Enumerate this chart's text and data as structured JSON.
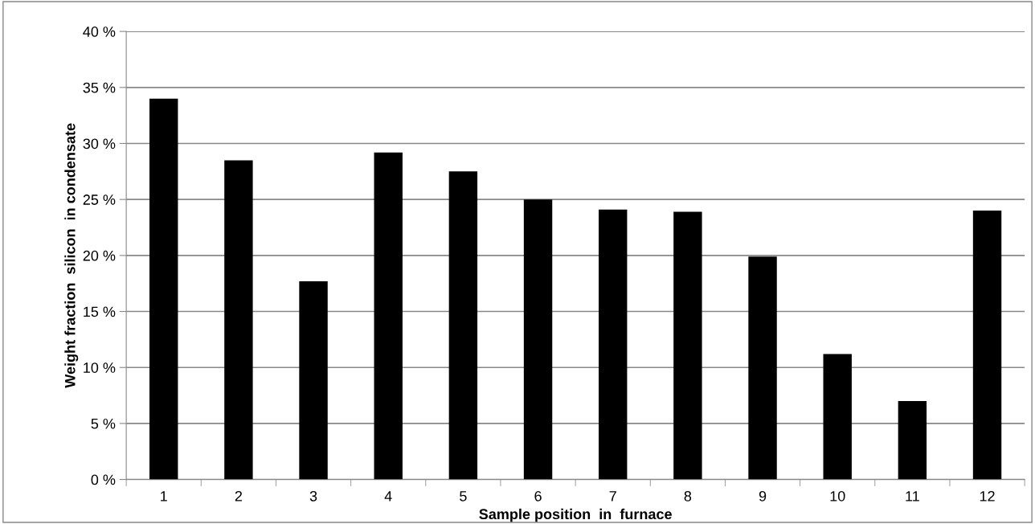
{
  "chart_data": {
    "type": "bar",
    "categories": [
      "1",
      "2",
      "3",
      "4",
      "5",
      "6",
      "7",
      "8",
      "9",
      "10",
      "11",
      "12"
    ],
    "values": [
      34.0,
      28.5,
      17.7,
      29.2,
      27.5,
      25.0,
      24.1,
      23.9,
      19.9,
      11.2,
      7.0,
      24.0
    ],
    "color": "#000000",
    "xlabel": "Sample position  in  furnace",
    "ylabel": "Weight fraction  silicon  in condensate",
    "ylim": [
      0,
      40
    ],
    "yticks": [
      {
        "value": 0,
        "label": "0 %"
      },
      {
        "value": 5,
        "label": "5 %"
      },
      {
        "value": 10,
        "label": "10 %"
      },
      {
        "value": 15,
        "label": "15 %"
      },
      {
        "value": 20,
        "label": "20 %"
      },
      {
        "value": 25,
        "label": "25 %"
      },
      {
        "value": 30,
        "label": "30 %"
      },
      {
        "value": 35,
        "label": "35 %"
      },
      {
        "value": 40,
        "label": "40 %"
      }
    ],
    "grid": "y",
    "legend": false
  }
}
